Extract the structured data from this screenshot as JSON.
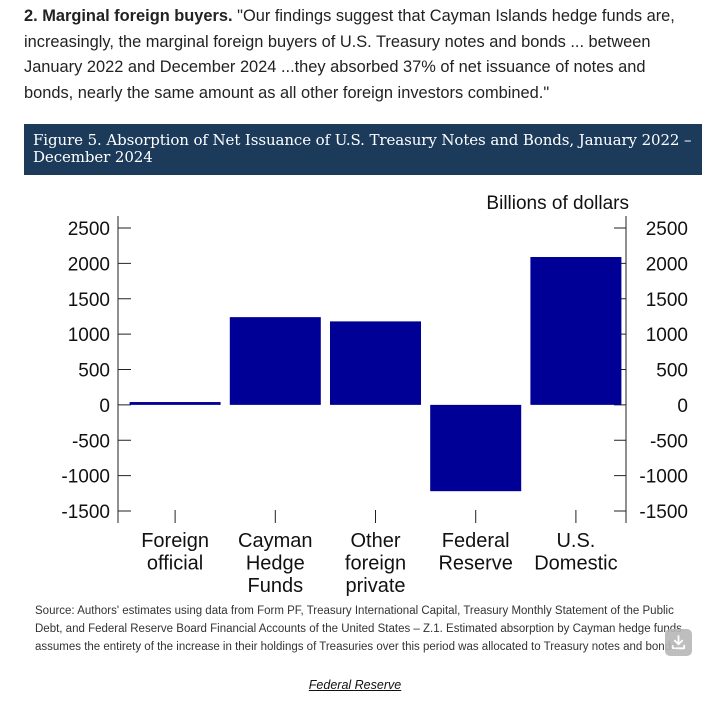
{
  "intro": {
    "lead": "2. Marginal foreign buyers.",
    "quote": " \"Our findings suggest that Cayman Islands hedge funds are, increasingly, the marginal foreign buyers of U.S. Treasury notes and bonds ... between January 2022 and December 2024 ...they absorbed 37% of net issuance of notes and bonds, nearly the same amount as all other foreign investors combined.\""
  },
  "figure": {
    "title": "Figure 5. Absorption of Net Issuance of U.S. Treasury Notes and Bonds, January 2022 – December 2024"
  },
  "chart_data": {
    "type": "bar",
    "title": "Figure 5. Absorption of Net Issuance of U.S. Treasury Notes and Bonds, January 2022 – December 2024",
    "unit_label": "Billions of dollars",
    "categories": [
      [
        "Foreign",
        "official"
      ],
      [
        "Cayman",
        "Hedge",
        "Funds"
      ],
      [
        "Other",
        "foreign",
        "private"
      ],
      [
        "Federal",
        "Reserve"
      ],
      [
        "U.S.",
        "Domestic"
      ]
    ],
    "values": [
      40,
      1240,
      1180,
      -1220,
      2090
    ],
    "ylim": [
      -1500,
      2500
    ],
    "yticks": [
      2500,
      2000,
      1500,
      1000,
      500,
      0,
      -500,
      -1000,
      -1500
    ],
    "bar_color": "#000096",
    "xlabel": "",
    "ylabel": ""
  },
  "source": "Source: Authors' estimates using data from Form PF, Treasury International Capital, Treasury Monthly Statement of the Public Debt, and Federal Reserve Board Financial Accounts of the United States – Z.1. Estimated absorption by Cayman hedge funds assumes the entirety of the increase in their holdings of Treasuries over this period was allocated to Treasury notes and bonds.",
  "footer_link": "Federal Reserve",
  "download_icon": "download-icon"
}
